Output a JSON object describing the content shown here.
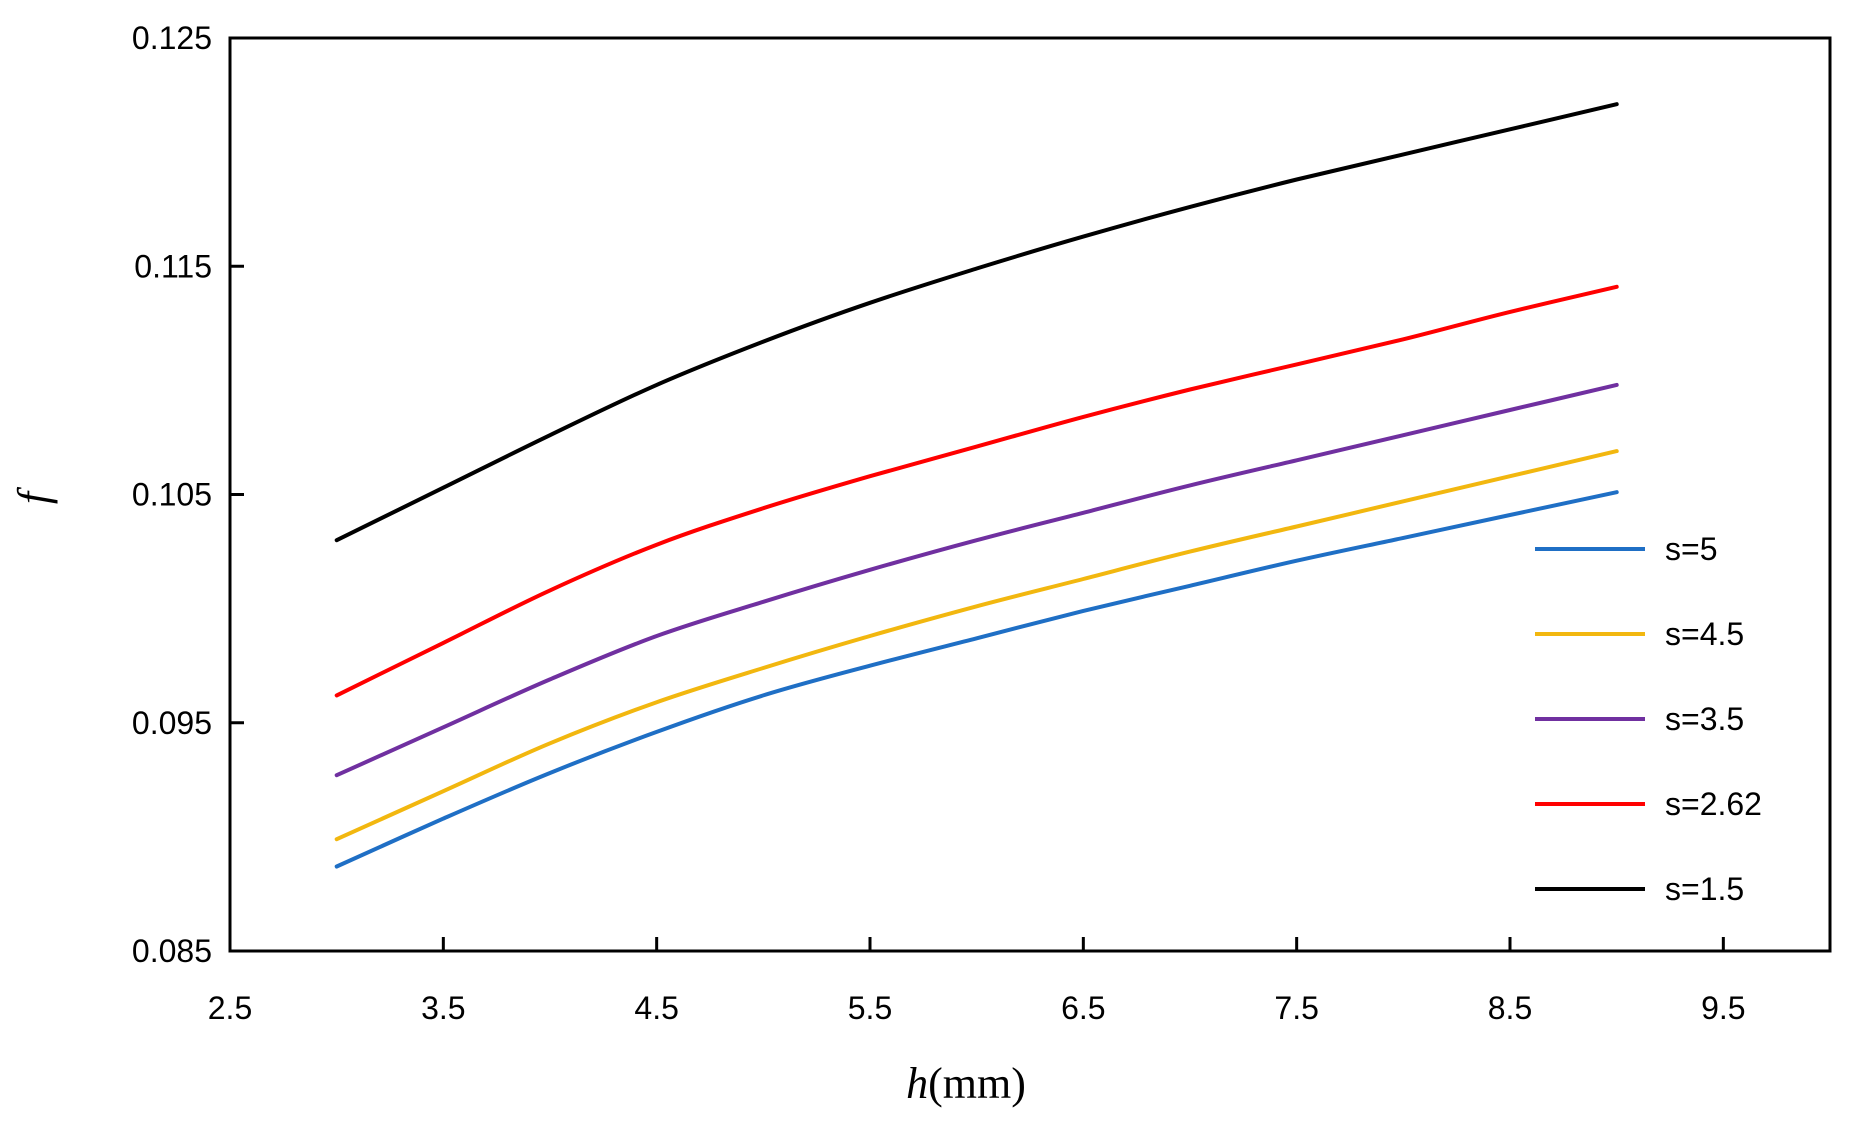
{
  "chart_data": {
    "type": "line",
    "title": "",
    "xlabel": {
      "italic": "h",
      "unit": "(mm)"
    },
    "ylabel": "f",
    "xlim": [
      2.5,
      10.0
    ],
    "ylim": [
      0.085,
      0.125
    ],
    "xticks": [
      2.5,
      3.5,
      4.5,
      5.5,
      6.5,
      7.5,
      8.5,
      9.5
    ],
    "xtick_labels": [
      "2.5",
      "3.5",
      "4.5",
      "5.5",
      "6.5",
      "7.5",
      "8.5",
      "9.5"
    ],
    "yticks": [
      0.085,
      0.095,
      0.105,
      0.115,
      0.125
    ],
    "ytick_labels": [
      "0.085",
      "0.095",
      "0.105",
      "0.115",
      "0.125"
    ],
    "grid": false,
    "legend_position": "right",
    "x": [
      3,
      3.5,
      4,
      4.5,
      5,
      5.5,
      6,
      6.5,
      7,
      7.5,
      8,
      8.5,
      9
    ],
    "series": [
      {
        "name": "s=5",
        "color": "#1f6fc5",
        "values": [
          0.0887,
          0.0908,
          0.0928,
          0.0946,
          0.0962,
          0.0975,
          0.0987,
          0.0999,
          0.101,
          0.1021,
          0.1031,
          0.1041,
          0.1051
        ]
      },
      {
        "name": "s=4.5",
        "color": "#f2b70f",
        "values": [
          0.0899,
          0.092,
          0.0941,
          0.0959,
          0.0974,
          0.0988,
          0.1001,
          0.1013,
          0.1025,
          0.1036,
          0.1047,
          0.1058,
          0.1069
        ]
      },
      {
        "name": "s=3.5",
        "color": "#7030a0",
        "values": [
          0.0927,
          0.0948,
          0.0969,
          0.0988,
          0.1003,
          0.1017,
          0.103,
          0.1042,
          0.1054,
          0.1065,
          0.1076,
          0.1087,
          0.1098
        ]
      },
      {
        "name": "s=2.62",
        "color": "#ff0000",
        "values": [
          0.0962,
          0.0985,
          0.1008,
          0.1028,
          0.1044,
          0.1058,
          0.1071,
          0.1084,
          0.1096,
          0.1107,
          0.1118,
          0.113,
          0.1141
        ]
      },
      {
        "name": "s=1.5",
        "color": "#000000",
        "values": [
          0.103,
          0.1053,
          0.1076,
          0.1098,
          0.1117,
          0.1134,
          0.1149,
          0.1163,
          0.1176,
          0.1188,
          0.1199,
          0.121,
          0.1221
        ]
      }
    ]
  }
}
